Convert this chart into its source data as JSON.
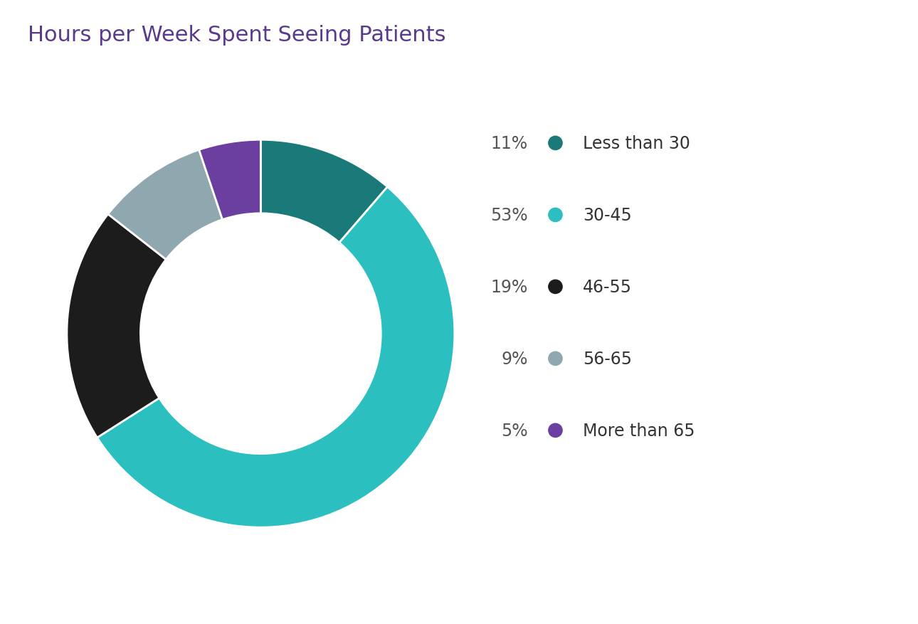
{
  "title": "Hours per Week Spent Seeing Patients",
  "title_color": "#5b3a8e",
  "title_fontsize": 22,
  "slices": [
    11,
    53,
    19,
    9,
    5
  ],
  "labels": [
    "Less than 30",
    "30-45",
    "46-55",
    "56-65",
    "More than 65"
  ],
  "percentages": [
    "11%",
    "53%",
    "19%",
    "9%",
    "5%"
  ],
  "colors": [
    "#1a7a7a",
    "#2bbfbf",
    "#1c1c1c",
    "#8fa8b0",
    "#6b3fa0"
  ],
  "background_color": "#ffffff",
  "legend_fontsize": 17,
  "donut_width": 0.38,
  "start_angle": 90
}
